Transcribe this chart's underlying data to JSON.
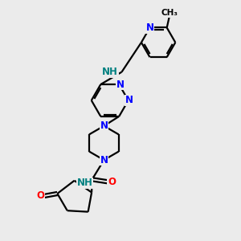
{
  "bg_color": "#ebebeb",
  "C_color": "#000000",
  "N_color": "#0000ff",
  "O_color": "#ff0000",
  "NH_color": "#008080",
  "line_width": 1.6,
  "font_size": 8.5,
  "fig_size": [
    3.0,
    3.0
  ],
  "dpi": 100,
  "xlim": [
    0,
    10
  ],
  "ylim": [
    0,
    10
  ]
}
